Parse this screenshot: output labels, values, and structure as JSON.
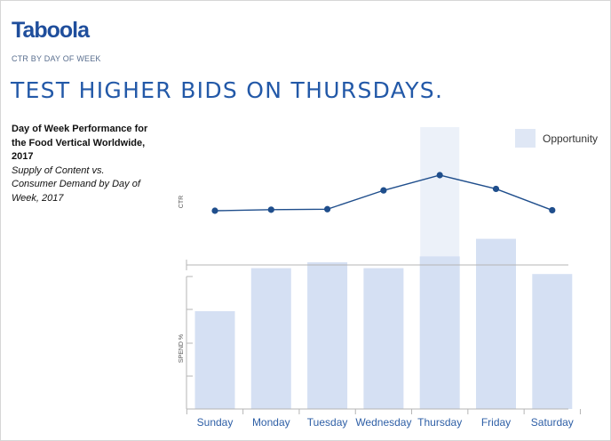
{
  "brand": {
    "logo_text": "Taboola"
  },
  "header": {
    "subtitle": "CTR BY DAY OF WEEK",
    "headline": "TEST HIGHER BIDS ON THURSDAYS."
  },
  "description": {
    "title": "Day of Week Performance for the Food Vertical Worldwide, 2017",
    "subtitle": "Supply of Content vs. Consumer Demand by Day of Week, 2017"
  },
  "chart_data": [
    {
      "type": "line",
      "categories": [
        "Sunday",
        "Monday",
        "Tuesday",
        "Wednesday",
        "Thursday",
        "Friday",
        "Saturday"
      ],
      "series": [
        {
          "values": [
            0.3,
            0.32,
            0.33,
            0.7,
            1.0,
            0.73,
            0.31
          ]
        }
      ],
      "ylabel": "CTR",
      "color": "#1f4e8c",
      "highlight": {
        "category": "Thursday",
        "legend_label": "Opportunity",
        "color": "#dfe7f5"
      }
    },
    {
      "type": "bar",
      "categories": [
        "Sunday",
        "Monday",
        "Tuesday",
        "Wednesday",
        "Thursday",
        "Friday",
        "Saturday"
      ],
      "values": [
        0.5,
        0.72,
        0.75,
        0.72,
        0.78,
        0.87,
        0.69
      ],
      "ylabel": "SPEND %",
      "ylim": [
        0,
        1
      ],
      "color": "#d5e0f3"
    }
  ]
}
